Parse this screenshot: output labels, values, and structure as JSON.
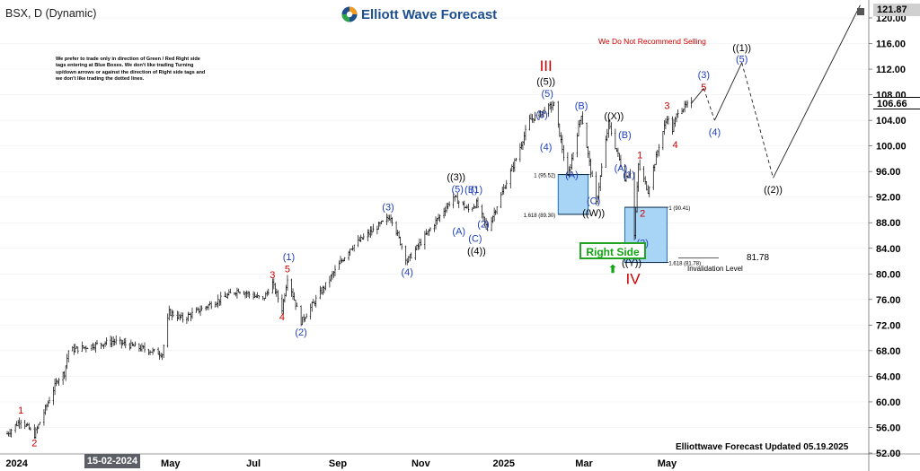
{
  "header": {
    "symbol_title": "BSX, D (Dynamic)",
    "brand": "Elliott Wave Forecast",
    "disclaimer": "We prefer to trade only in direction of Green / Red Right side tags entering at Blue Boxes. We don't like trading Turning up/down arrows or against the direction of Right side tags and we don't like trading the dotted lines.",
    "no_sell": "We Do Not Recommend Selling",
    "updated": "Elliottwave Forecast Updated 05.19.2025",
    "highlighted_date": "15-02-2024",
    "right_side_tag": "Right Side",
    "invalidation": "Invalidation Level",
    "invalidation_value": "81.78",
    "top_price_tag": "121.87",
    "last_price_tag": "106.66"
  },
  "colors": {
    "wave_blue": "#1f3fbf",
    "wave_red": "#cc0000",
    "box_fill": "#a8d4f5",
    "box_stroke": "#1f6fbf",
    "green": "#11a611",
    "bars": "#000000"
  },
  "chart_data": {
    "type": "ohlc",
    "y_axis": {
      "ticks": [
        52,
        56,
        60,
        64,
        68,
        72,
        76,
        80,
        84,
        88,
        92,
        96,
        100,
        104,
        108,
        112,
        116,
        120
      ],
      "ylim": [
        51,
        122
      ]
    },
    "x_axis": {
      "labels": [
        "2024",
        "15-02-2024",
        "May",
        "Jul",
        "Sep",
        "Nov",
        "2025",
        "Mar",
        "May"
      ]
    },
    "last_price": 106.66,
    "path_anchors": [
      {
        "date": "2024-01-02",
        "price": 55.0
      },
      {
        "date": "2024-01-12",
        "price": 57.2
      },
      {
        "date": "2024-01-22",
        "price": 54.8
      },
      {
        "date": "2024-02-08",
        "price": 63.5
      },
      {
        "date": "2024-02-13",
        "price": 64.5
      },
      {
        "date": "2024-02-16",
        "price": 68.0
      },
      {
        "date": "2024-03-20",
        "price": 69.5
      },
      {
        "date": "2024-04-25",
        "price": 67.5
      },
      {
        "date": "2024-04-30",
        "price": 74.0
      },
      {
        "date": "2024-05-10",
        "price": 73.0
      },
      {
        "date": "2024-06-20",
        "price": 77.5
      },
      {
        "date": "2024-07-08",
        "price": 76.0
      },
      {
        "date": "2024-07-15",
        "price": 78.5
      },
      {
        "date": "2024-07-22",
        "price": 74.5
      },
      {
        "date": "2024-07-26",
        "price": 79.5
      },
      {
        "date": "2024-08-05",
        "price": 72.5
      },
      {
        "date": "2024-09-10",
        "price": 84.0
      },
      {
        "date": "2024-10-10",
        "price": 89.0
      },
      {
        "date": "2024-10-22",
        "price": 82.0
      },
      {
        "date": "2024-11-25",
        "price": 92.0
      },
      {
        "date": "2024-12-06",
        "price": 90.0
      },
      {
        "date": "2024-12-12",
        "price": 91.0
      },
      {
        "date": "2024-12-20",
        "price": 87.0
      },
      {
        "date": "2025-01-10",
        "price": 98.0
      },
      {
        "date": "2025-01-20",
        "price": 104.0
      },
      {
        "date": "2025-02-07",
        "price": 106.5
      },
      {
        "date": "2025-02-17",
        "price": 95.0
      },
      {
        "date": "2025-02-27",
        "price": 105.0
      },
      {
        "date": "2025-03-10",
        "price": 91.0
      },
      {
        "date": "2025-03-19",
        "price": 103.5
      },
      {
        "date": "2025-03-31",
        "price": 95.0
      },
      {
        "date": "2025-04-04",
        "price": 96.0
      },
      {
        "date": "2025-04-07",
        "price": 86.0
      },
      {
        "date": "2025-04-10",
        "price": 97.0
      },
      {
        "date": "2025-04-17",
        "price": 93.0
      },
      {
        "date": "2025-04-25",
        "price": 100.0
      },
      {
        "date": "2025-05-01",
        "price": 104.5
      },
      {
        "date": "2025-05-05",
        "price": 102.5
      },
      {
        "date": "2025-05-09",
        "price": 105.5
      },
      {
        "date": "2025-05-19",
        "price": 106.66
      }
    ],
    "projection_path": [
      {
        "date": "2025-05-28",
        "price": 109.0
      },
      {
        "date": "2025-06-05",
        "price": 104.0
      },
      {
        "date": "2025-06-25",
        "price": 113.0
      },
      {
        "date": "2025-07-18",
        "price": 95.0
      },
      {
        "date": "2025-09-20",
        "price": 122.0
      }
    ],
    "blue_boxes": [
      {
        "label": "",
        "date_from": "2025-02-10",
        "date_to": "2025-03-04",
        "price_low": 89.3,
        "price_high": 95.52,
        "upper_label": "1 (95.52)",
        "lower_label": "1.618 (89.30)"
      },
      {
        "label": "",
        "date_from": "2025-03-31",
        "date_to": "2025-05-01",
        "price_low": 81.78,
        "price_high": 90.41,
        "upper_label": "1 (90.41)",
        "lower_label": "1.618 (81.78)"
      }
    ],
    "wave_labels": [
      {
        "text": "1",
        "date": "2024-01-12",
        "price": 58.7,
        "color": "red"
      },
      {
        "text": "2",
        "date": "2024-01-22",
        "price": 53.6,
        "color": "red"
      },
      {
        "text": "3",
        "date": "2024-07-15",
        "price": 79.9,
        "color": "red"
      },
      {
        "text": "4",
        "date": "2024-07-22",
        "price": 73.3,
        "color": "red"
      },
      {
        "text": "5",
        "date": "2024-07-26",
        "price": 80.8,
        "color": "red"
      },
      {
        "text": "(1)",
        "date": "2024-07-27",
        "price": 82.7,
        "color": "blue"
      },
      {
        "text": "(2)",
        "date": "2024-08-05",
        "price": 70.9,
        "color": "blue"
      },
      {
        "text": "(3)",
        "date": "2024-10-08",
        "price": 90.5,
        "color": "blue"
      },
      {
        "text": "(4)",
        "date": "2024-10-22",
        "price": 80.3,
        "color": "blue"
      },
      {
        "text": "((3))",
        "date": "2024-11-27",
        "price": 95.2,
        "color": "black"
      },
      {
        "text": "(5)",
        "date": "2024-11-28",
        "price": 93.3,
        "color": "blue"
      },
      {
        "text": "(A)",
        "date": "2024-11-29",
        "price": 86.7,
        "color": "blue"
      },
      {
        "text": "(B)",
        "date": "2024-12-08",
        "price": 93.2,
        "color": "blue"
      },
      {
        "text": "(1)",
        "date": "2024-12-12",
        "price": 93.2,
        "color": "blue"
      },
      {
        "text": "(2)",
        "date": "2024-12-17",
        "price": 87.8,
        "color": "blue"
      },
      {
        "text": "(C)",
        "date": "2024-12-11",
        "price": 85.6,
        "color": "blue"
      },
      {
        "text": "((4))",
        "date": "2024-12-12",
        "price": 83.6,
        "color": "black"
      },
      {
        "text": "III",
        "date": "2025-02-01",
        "price": 112.3,
        "color": "red"
      },
      {
        "text": "((5))",
        "date": "2025-02-01",
        "price": 110.1,
        "color": "black"
      },
      {
        "text": "(5)",
        "date": "2025-02-02",
        "price": 108.2,
        "color": "blue"
      },
      {
        "text": "(3)",
        "date": "2025-01-29",
        "price": 104.9,
        "color": "blue"
      },
      {
        "text": "(4)",
        "date": "2025-02-01",
        "price": 99.9,
        "color": "blue"
      },
      {
        "text": "(A)",
        "date": "2025-02-20",
        "price": 95.5,
        "color": "blue"
      },
      {
        "text": "(B)",
        "date": "2025-02-27",
        "price": 106.3,
        "color": "blue"
      },
      {
        "text": "(C)",
        "date": "2025-03-08",
        "price": 91.5,
        "color": "blue"
      },
      {
        "text": "((W))",
        "date": "2025-03-08",
        "price": 89.6,
        "color": "black"
      },
      {
        "text": "((X))",
        "date": "2025-03-23",
        "price": 104.7,
        "color": "black"
      },
      {
        "text": "(B)",
        "date": "2025-03-31",
        "price": 101.8,
        "color": "blue"
      },
      {
        "text": "(A)",
        "date": "2025-03-28",
        "price": 96.6,
        "color": "blue"
      },
      {
        "text": "1",
        "date": "2025-04-11",
        "price": 98.6,
        "color": "red"
      },
      {
        "text": "(1)",
        "date": "2025-04-03",
        "price": 95.5,
        "color": "blue"
      },
      {
        "text": "2",
        "date": "2025-04-13",
        "price": 89.5,
        "color": "red"
      },
      {
        "text": "(2)",
        "date": "2025-04-13",
        "price": 84.9,
        "color": "blue"
      },
      {
        "text": "(C)",
        "date": "2025-04-05",
        "price": 83.7,
        "color": "blue"
      },
      {
        "text": "((Y))",
        "date": "2025-04-05",
        "price": 81.8,
        "color": "black"
      },
      {
        "text": "IV",
        "date": "2025-04-06",
        "price": 79.0,
        "color": "red"
      },
      {
        "text": "3",
        "date": "2025-05-01",
        "price": 106.3,
        "color": "red"
      },
      {
        "text": "4",
        "date": "2025-05-07",
        "price": 100.2,
        "color": "red"
      },
      {
        "text": "5",
        "date": "2025-05-28",
        "price": 109.2,
        "color": "red"
      },
      {
        "text": "(3)",
        "date": "2025-05-28",
        "price": 111.2,
        "color": "blue"
      },
      {
        "text": "(4)",
        "date": "2025-06-05",
        "price": 102.2,
        "color": "blue"
      },
      {
        "text": "(5)",
        "date": "2025-06-25",
        "price": 113.6,
        "color": "blue"
      },
      {
        "text": "((1))",
        "date": "2025-06-25",
        "price": 115.4,
        "color": "black"
      },
      {
        "text": "((2))",
        "date": "2025-07-18",
        "price": 93.2,
        "color": "black"
      }
    ]
  }
}
